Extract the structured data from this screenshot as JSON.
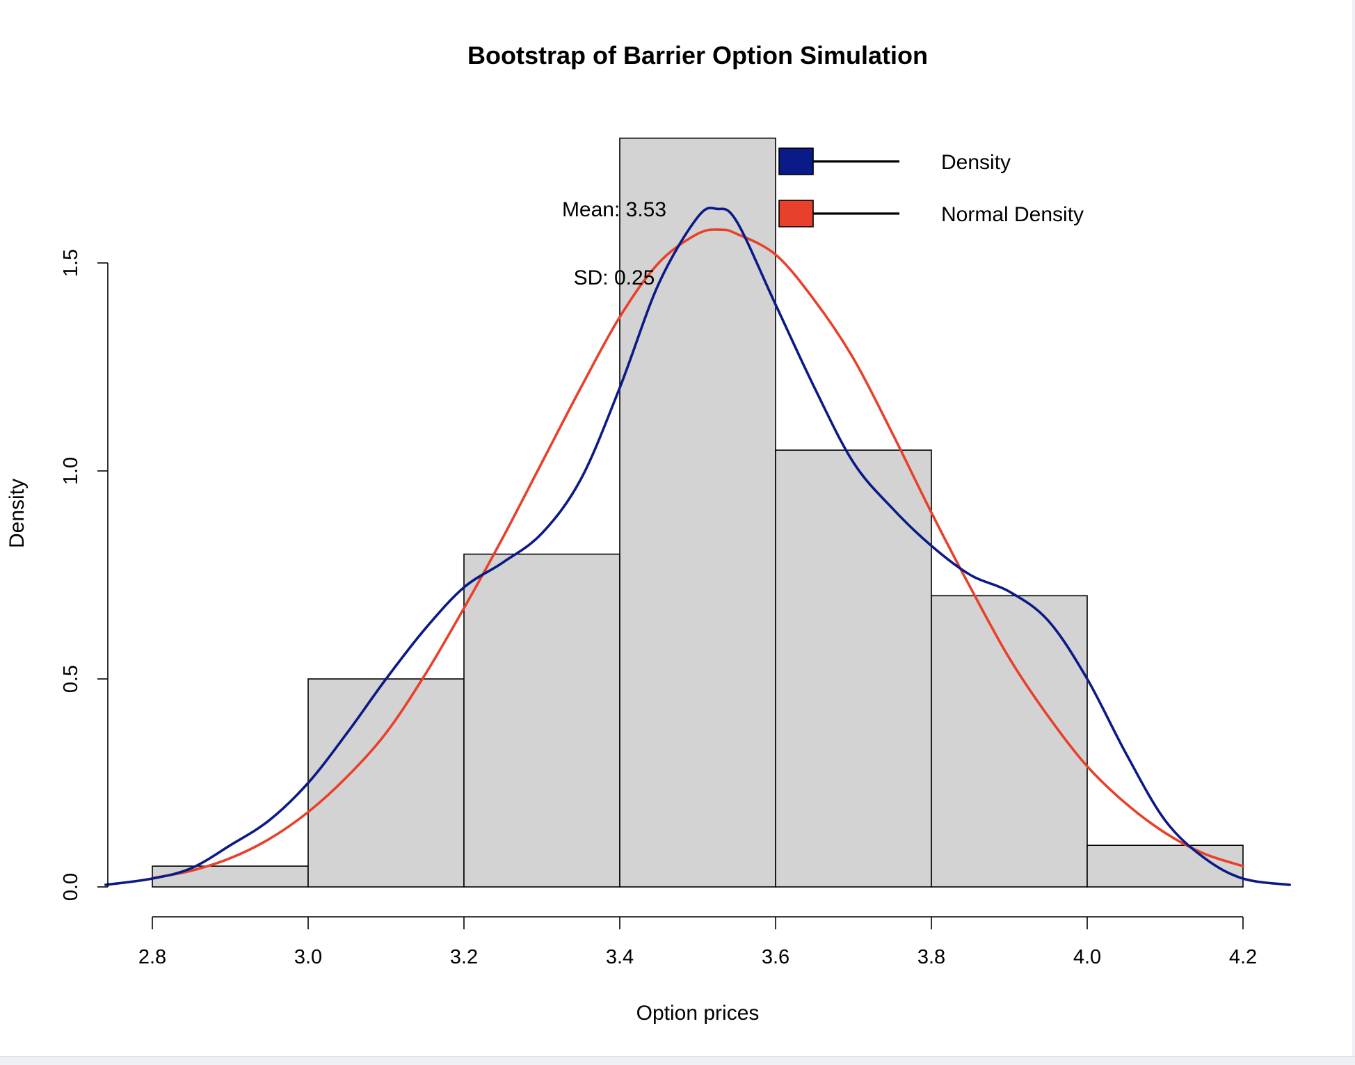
{
  "chart_data": {
    "type": "bar",
    "title": "Bootstrap of Barrier Option Simulation",
    "xlabel": "Option prices",
    "ylabel": "Density",
    "xlim": [
      2.8,
      4.2
    ],
    "ylim": [
      0,
      1.5
    ],
    "x_ticks": [
      "2.8",
      "3.0",
      "3.2",
      "3.4",
      "3.6",
      "3.8",
      "4.0",
      "4.2"
    ],
    "y_ticks": [
      "0.0",
      "0.5",
      "1.0",
      "1.5"
    ],
    "bins": [
      {
        "from": 2.8,
        "to": 3.0,
        "density": 0.05
      },
      {
        "from": 3.0,
        "to": 3.2,
        "density": 0.5
      },
      {
        "from": 3.2,
        "to": 3.4,
        "density": 0.8
      },
      {
        "from": 3.4,
        "to": 3.6,
        "density": 1.8
      },
      {
        "from": 3.6,
        "to": 3.8,
        "density": 1.05
      },
      {
        "from": 3.8,
        "to": 4.0,
        "density": 0.7
      },
      {
        "from": 4.0,
        "to": 4.2,
        "density": 0.1
      }
    ],
    "series": [
      {
        "name": "Density",
        "type": "line",
        "color": "#0a1a86",
        "x": [
          2.74,
          2.8,
          2.85,
          2.9,
          2.95,
          3.0,
          3.05,
          3.1,
          3.15,
          3.2,
          3.25,
          3.3,
          3.35,
          3.4,
          3.45,
          3.5,
          3.525,
          3.55,
          3.6,
          3.65,
          3.7,
          3.75,
          3.8,
          3.85,
          3.9,
          3.95,
          4.0,
          4.05,
          4.1,
          4.15,
          4.2,
          4.26
        ],
        "y": [
          0.005,
          0.02,
          0.045,
          0.1,
          0.16,
          0.25,
          0.37,
          0.5,
          0.62,
          0.72,
          0.78,
          0.85,
          0.98,
          1.2,
          1.45,
          1.61,
          1.63,
          1.6,
          1.4,
          1.2,
          1.02,
          0.91,
          0.82,
          0.75,
          0.71,
          0.64,
          0.5,
          0.32,
          0.16,
          0.07,
          0.02,
          0.005
        ]
      },
      {
        "name": "Normal Density",
        "type": "line",
        "color": "#e8402a",
        "x": [
          2.8,
          2.85,
          2.9,
          2.95,
          3.0,
          3.05,
          3.1,
          3.15,
          3.2,
          3.25,
          3.3,
          3.35,
          3.4,
          3.45,
          3.5,
          3.53,
          3.55,
          3.6,
          3.65,
          3.7,
          3.75,
          3.8,
          3.85,
          3.9,
          3.95,
          4.0,
          4.05,
          4.1,
          4.15,
          4.2
        ],
        "y": [
          0.021,
          0.039,
          0.069,
          0.115,
          0.18,
          0.265,
          0.37,
          0.51,
          0.67,
          0.84,
          1.02,
          1.2,
          1.37,
          1.5,
          1.57,
          1.58,
          1.57,
          1.52,
          1.41,
          1.27,
          1.09,
          0.9,
          0.72,
          0.55,
          0.41,
          0.29,
          0.2,
          0.13,
          0.08,
          0.05
        ]
      }
    ],
    "legend": {
      "position": "top-right",
      "entries": [
        {
          "label": "Density",
          "color": "#0a1a86"
        },
        {
          "label": "Normal Density",
          "color": "#e8402a"
        }
      ]
    },
    "annotations": {
      "mean_label": "Mean: 3.53",
      "sd_label": "SD: 0.25"
    },
    "colors": {
      "bar_fill": "#d3d3d3",
      "bar_stroke": "#000000",
      "density_line": "#0a1a86",
      "normal_line": "#e8402a"
    },
    "grid": false
  }
}
